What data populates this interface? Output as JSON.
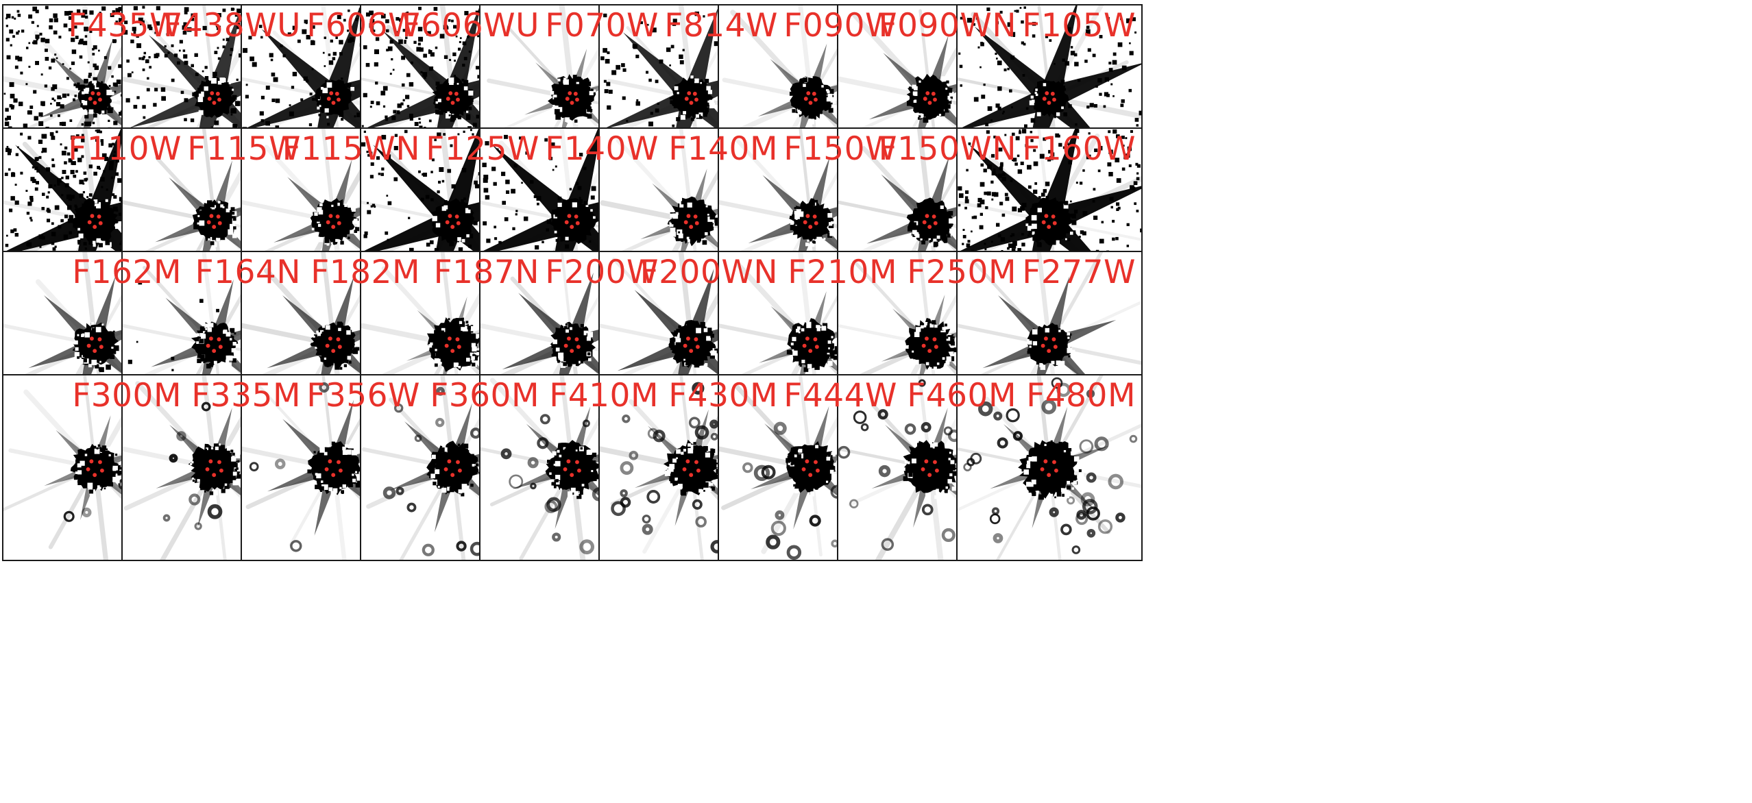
{
  "colors": {
    "label": "#e8312a",
    "marker": "#e8312a",
    "psf_core": "#000000",
    "background": "#ffffff",
    "frame": "#1a1a1a"
  },
  "rows": [
    {
      "panels": [
        {
          "filter": "F435W",
          "noise": 0.85,
          "spikes": 0.35,
          "core": 0.38,
          "rings": 0,
          "speckle": 0.25
        },
        {
          "filter": "F438WU",
          "noise": 0.55,
          "spikes": 0.75,
          "core": 0.45,
          "rings": 0,
          "speckle": 0.3
        },
        {
          "filter": "F606W",
          "noise": 0.4,
          "spikes": 0.9,
          "core": 0.42,
          "rings": 0,
          "speckle": 0.2
        },
        {
          "filter": "F606WU",
          "noise": 0.55,
          "spikes": 0.85,
          "core": 0.45,
          "rings": 0,
          "speckle": 0.3
        },
        {
          "filter": "F070W",
          "noise": 0.0,
          "spikes": 0.15,
          "core": 0.5,
          "rings": 0,
          "speckle": 0.5
        },
        {
          "filter": "F814W",
          "noise": 0.25,
          "spikes": 0.8,
          "core": 0.46,
          "rings": 0,
          "speckle": 0.3
        },
        {
          "filter": "F090W",
          "noise": 0.0,
          "spikes": 0.25,
          "core": 0.46,
          "rings": 0,
          "speckle": 0.45
        },
        {
          "filter": "F090WN",
          "noise": 0.0,
          "spikes": 0.35,
          "core": 0.5,
          "rings": 0,
          "speckle": 0.4
        },
        {
          "filter": "F105W",
          "noise": 0.3,
          "spikes": 0.95,
          "core": 0.42,
          "rings": 0,
          "speckle": 0.2
        }
      ]
    },
    {
      "panels": [
        {
          "filter": "F110W",
          "noise": 0.75,
          "spikes": 1.0,
          "core": 0.5,
          "rings": 0,
          "speckle": 0.3
        },
        {
          "filter": "F115W",
          "noise": 0.0,
          "spikes": 0.35,
          "core": 0.46,
          "rings": 0,
          "speckle": 0.45
        },
        {
          "filter": "F115WN",
          "noise": 0.0,
          "spikes": 0.35,
          "core": 0.48,
          "rings": 0,
          "speckle": 0.45
        },
        {
          "filter": "F125W",
          "noise": 0.3,
          "spikes": 1.0,
          "core": 0.5,
          "rings": 0,
          "speckle": 0.2
        },
        {
          "filter": "F140W",
          "noise": 0.25,
          "spikes": 1.0,
          "core": 0.52,
          "rings": 0,
          "speckle": 0.2
        },
        {
          "filter": "F140M",
          "noise": 0.0,
          "spikes": 0.2,
          "core": 0.5,
          "rings": 0,
          "speckle": 0.55
        },
        {
          "filter": "F150W",
          "noise": 0.0,
          "spikes": 0.4,
          "core": 0.46,
          "rings": 0,
          "speckle": 0.45
        },
        {
          "filter": "F150WN",
          "noise": 0.0,
          "spikes": 0.4,
          "core": 0.48,
          "rings": 0,
          "speckle": 0.45
        },
        {
          "filter": "F160W",
          "noise": 0.6,
          "spikes": 1.0,
          "core": 0.52,
          "rings": 0,
          "speckle": 0.3
        }
      ]
    },
    {
      "panels": [
        {
          "filter": "F162M",
          "noise": 0.0,
          "spikes": 0.45,
          "core": 0.48,
          "rings": 0,
          "speckle": 0.45
        },
        {
          "filter": "F164N",
          "noise": 0.05,
          "spikes": 0.4,
          "core": 0.48,
          "rings": 0,
          "speckle": 0.5
        },
        {
          "filter": "F182M",
          "noise": 0.0,
          "spikes": 0.45,
          "core": 0.48,
          "rings": 0,
          "speckle": 0.45
        },
        {
          "filter": "F187N",
          "noise": 0.0,
          "spikes": 0.1,
          "core": 0.55,
          "rings": 0,
          "speckle": 0.65
        },
        {
          "filter": "F200W",
          "noise": 0.0,
          "spikes": 0.5,
          "core": 0.48,
          "rings": 0,
          "speckle": 0.4
        },
        {
          "filter": "F200WN",
          "noise": 0.0,
          "spikes": 0.55,
          "core": 0.5,
          "rings": 0,
          "speckle": 0.4
        },
        {
          "filter": "F210M",
          "noise": 0.0,
          "spikes": 0.2,
          "core": 0.52,
          "rings": 0,
          "speckle": 0.55
        },
        {
          "filter": "F250M",
          "noise": 0.0,
          "spikes": 0.15,
          "core": 0.52,
          "rings": 0,
          "speckle": 0.55
        },
        {
          "filter": "F277W",
          "noise": 0.0,
          "spikes": 0.45,
          "core": 0.48,
          "rings": 0,
          "speckle": 0.4
        }
      ]
    },
    {
      "panels": [
        {
          "filter": "F300M",
          "noise": 0.0,
          "spikes": 0.2,
          "core": 0.5,
          "rings": 0.1,
          "speckle": 0.55
        },
        {
          "filter": "F335M",
          "noise": 0.0,
          "spikes": 0.3,
          "core": 0.52,
          "rings": 0.2,
          "speckle": 0.55
        },
        {
          "filter": "F356W",
          "noise": 0.0,
          "spikes": 0.4,
          "core": 0.55,
          "rings": 0.2,
          "speckle": 0.5
        },
        {
          "filter": "F360M",
          "noise": 0.0,
          "spikes": 0.35,
          "core": 0.55,
          "rings": 0.35,
          "speckle": 0.55
        },
        {
          "filter": "F410M",
          "noise": 0.0,
          "spikes": 0.3,
          "core": 0.55,
          "rings": 0.5,
          "speckle": 0.55
        },
        {
          "filter": "F430M",
          "noise": 0.0,
          "spikes": 0.25,
          "core": 0.56,
          "rings": 0.65,
          "speckle": 0.55
        },
        {
          "filter": "F444W",
          "noise": 0.0,
          "spikes": 0.3,
          "core": 0.56,
          "rings": 0.35,
          "speckle": 0.45
        },
        {
          "filter": "F460M",
          "noise": 0.0,
          "spikes": 0.25,
          "core": 0.6,
          "rings": 0.75,
          "speckle": 0.5
        },
        {
          "filter": "F480M",
          "noise": 0.0,
          "spikes": 0.25,
          "core": 0.62,
          "rings": 0.8,
          "speckle": 0.5
        }
      ]
    }
  ]
}
